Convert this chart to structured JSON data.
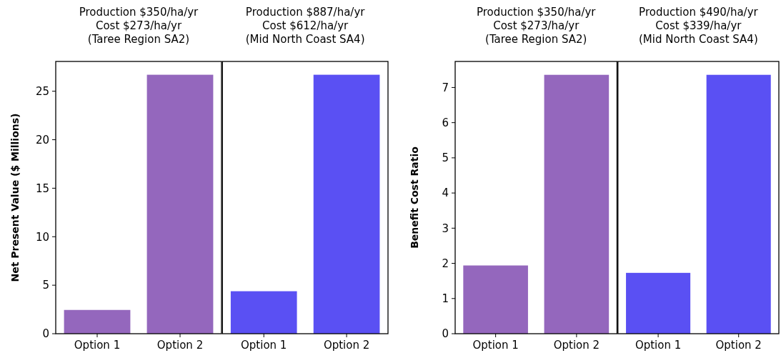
{
  "chart_data": [
    {
      "type": "bar",
      "title": "Production $350/ha/yr\nCost $273/ha/yr\n(Taree Region SA2)",
      "ylabel": "Net Present Value ($ Millions)",
      "categories": [
        "Option 1",
        "Option 2"
      ],
      "values": [
        2.45,
        26.7
      ],
      "color": "#9467bd",
      "ylim": [
        0,
        28.07
      ],
      "yticks": [
        0,
        5,
        10,
        15,
        20,
        25
      ]
    },
    {
      "type": "bar",
      "title": "Production $887/ha/yr\nCost $612/ha/yr\n(Mid North Coast SA4)",
      "categories": [
        "Option 1",
        "Option 2"
      ],
      "values": [
        4.38,
        26.7
      ],
      "color": "#5a50f3",
      "ylim": [
        0,
        28.07
      ],
      "tick_labels": "x"
    },
    {
      "type": "bar",
      "title": "Production $350/ha/yr\nCost $273/ha/yr\n(Taree Region SA2)",
      "ylabel": "Benefit Cost Ratio",
      "categories": [
        "Option 1",
        "Option 2"
      ],
      "values": [
        1.94,
        7.36
      ],
      "color": "#9467bd",
      "ylim": [
        0,
        7.74
      ],
      "yticks": [
        0,
        1,
        2,
        3,
        4,
        5,
        6,
        7
      ]
    },
    {
      "type": "bar",
      "title": "Production $490/ha/yr\nCost $339/ha/yr\n(Mid North Coast SA4)",
      "categories": [
        "Option 1",
        "Option 2"
      ],
      "values": [
        1.73,
        7.36
      ],
      "color": "#5a50f3",
      "ylim": [
        0,
        7.74
      ],
      "tick_labels": "x"
    }
  ]
}
